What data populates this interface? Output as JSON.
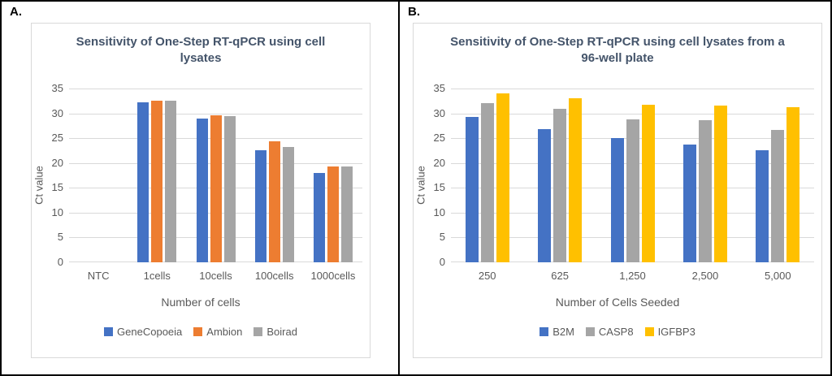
{
  "figure": {
    "panel_labels": [
      "A.",
      "B."
    ]
  },
  "colors": {
    "title_text": "#44546A",
    "axis_text": "#595959",
    "gridline": "#D9D9D9",
    "chart_border": "#D9D9D9",
    "frame": "#000000",
    "series_blue": "#4472C4",
    "series_orange": "#ED7D31",
    "series_gray": "#A5A5A5",
    "series_yellow": "#FFC000"
  },
  "chart_data": [
    {
      "type": "bar",
      "title": "Sensitivity of One-Step RT-qPCR using cell lysates",
      "xlabel": "Number of cells",
      "ylabel": "Ct value",
      "ylim": [
        0,
        35
      ],
      "ytick_step": 5,
      "grid": true,
      "legend_position": "bottom",
      "categories": [
        "NTC",
        "1cells",
        "10cells",
        "100cells",
        "1000cells"
      ],
      "series": [
        {
          "name": "GeneCopoeia",
          "color": "#4472C4",
          "values": [
            0,
            32.2,
            28.9,
            22.6,
            18.0
          ]
        },
        {
          "name": "Ambion",
          "color": "#ED7D31",
          "values": [
            0,
            32.5,
            29.6,
            24.4,
            19.3
          ]
        },
        {
          "name": "Boirad",
          "color": "#A5A5A5",
          "values": [
            0,
            32.5,
            29.5,
            23.2,
            19.3
          ]
        }
      ]
    },
    {
      "type": "bar",
      "title": "Sensitivity of One-Step RT-qPCR using cell lysates from a 96-well plate",
      "xlabel": "Number of Cells Seeded",
      "ylabel": "Ct value",
      "ylim": [
        0,
        35
      ],
      "ytick_step": 5,
      "grid": true,
      "legend_position": "bottom",
      "categories": [
        "250",
        "625",
        "1,250",
        "2,500",
        "5,000"
      ],
      "series": [
        {
          "name": "B2M",
          "color": "#4472C4",
          "values": [
            29.3,
            26.9,
            25.1,
            23.7,
            22.6
          ]
        },
        {
          "name": "CASP8",
          "color": "#A5A5A5",
          "values": [
            32.1,
            30.9,
            28.8,
            28.6,
            26.7
          ]
        },
        {
          "name": "IGFBP3",
          "color": "#FFC000",
          "values": [
            34.0,
            33.0,
            31.7,
            31.5,
            31.2
          ]
        }
      ]
    }
  ]
}
